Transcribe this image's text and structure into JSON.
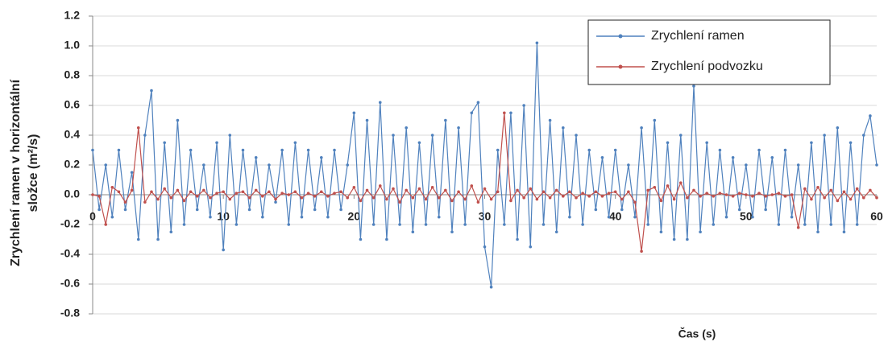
{
  "chart_data": {
    "type": "line",
    "ylabel": [
      "Zrychlení ramen v horizontální",
      "složce (m²/s)"
    ],
    "xlabel": "Čas (s)",
    "x": [
      0,
      0.5,
      1,
      1.5,
      2,
      2.5,
      3,
      3.5,
      4,
      4.5,
      5,
      5.5,
      6,
      6.5,
      7,
      7.5,
      8,
      8.5,
      9,
      9.5,
      10,
      10.5,
      11,
      11.5,
      12,
      12.5,
      13,
      13.5,
      14,
      14.5,
      15,
      15.5,
      16,
      16.5,
      17,
      17.5,
      18,
      18.5,
      19,
      19.5,
      20,
      20.5,
      21,
      21.5,
      22,
      22.5,
      23,
      23.5,
      24,
      24.5,
      25,
      25.5,
      26,
      26.5,
      27,
      27.5,
      28,
      28.5,
      29,
      29.5,
      30,
      30.5,
      31,
      31.5,
      32,
      32.5,
      33,
      33.5,
      34,
      34.5,
      35,
      35.5,
      36,
      36.5,
      37,
      37.5,
      38,
      38.5,
      39,
      39.5,
      40,
      40.5,
      41,
      41.5,
      42,
      42.5,
      43,
      43.5,
      44,
      44.5,
      45,
      45.5,
      46,
      46.5,
      47,
      47.5,
      48,
      48.5,
      49,
      49.5,
      50,
      50.5,
      51,
      51.5,
      52,
      52.5,
      53,
      53.5,
      54,
      54.5,
      55,
      55.5,
      56,
      56.5,
      57,
      57.5,
      58,
      58.5,
      59,
      59.5,
      60
    ],
    "series": [
      {
        "name": "Zrychlení ramen",
        "color": "#4f81bd",
        "values": [
          0.3,
          -0.1,
          0.2,
          -0.15,
          0.3,
          -0.1,
          0.15,
          -0.3,
          0.4,
          0.7,
          -0.3,
          0.35,
          -0.25,
          0.5,
          -0.2,
          0.3,
          -0.1,
          0.2,
          -0.15,
          0.35,
          -0.37,
          0.4,
          -0.2,
          0.3,
          -0.1,
          0.25,
          -0.15,
          0.2,
          -0.05,
          0.3,
          -0.2,
          0.35,
          -0.15,
          0.3,
          -0.1,
          0.25,
          -0.15,
          0.3,
          -0.1,
          0.2,
          0.55,
          -0.3,
          0.5,
          -0.2,
          0.62,
          -0.3,
          0.4,
          -0.2,
          0.45,
          -0.25,
          0.35,
          -0.2,
          0.4,
          -0.15,
          0.5,
          -0.25,
          0.45,
          -0.2,
          0.55,
          0.62,
          -0.35,
          -0.62,
          0.3,
          -0.2,
          0.55,
          -0.3,
          0.6,
          -0.35,
          1.02,
          -0.2,
          0.5,
          -0.25,
          0.45,
          -0.15,
          0.4,
          -0.2,
          0.3,
          -0.1,
          0.25,
          -0.15,
          0.3,
          -0.1,
          0.2,
          -0.15,
          0.45,
          -0.2,
          0.5,
          -0.25,
          0.35,
          -0.3,
          0.4,
          -0.3,
          0.73,
          -0.25,
          0.35,
          -0.2,
          0.3,
          -0.15,
          0.25,
          -0.1,
          0.2,
          -0.15,
          0.3,
          -0.1,
          0.25,
          -0.2,
          0.3,
          -0.15,
          0.2,
          -0.2,
          0.35,
          -0.25,
          0.4,
          -0.2,
          0.45,
          -0.25,
          0.35,
          -0.2,
          0.4,
          0.53,
          0.2
        ]
      },
      {
        "name": "Zrychlení podvozku",
        "color": "#c0504d",
        "values": [
          0,
          -0.01,
          -0.2,
          0.05,
          0.02,
          -0.05,
          0.03,
          0.45,
          -0.05,
          0.02,
          -0.03,
          0.04,
          -0.02,
          0.03,
          -0.04,
          0.02,
          -0.01,
          0.03,
          -0.02,
          0.01,
          0.02,
          -0.03,
          0.01,
          0.02,
          -0.02,
          0.03,
          -0.01,
          0.02,
          -0.03,
          0.01,
          0,
          0.02,
          -0.02,
          0.01,
          -0.01,
          0.02,
          -0.01,
          0.01,
          0.02,
          -0.02,
          0.05,
          -0.04,
          0.03,
          -0.02,
          0.06,
          -0.03,
          0.04,
          -0.05,
          0.03,
          -0.02,
          0.04,
          -0.03,
          0.05,
          -0.02,
          0.03,
          -0.04,
          0.02,
          -0.03,
          0.06,
          -0.05,
          0.04,
          -0.03,
          0.02,
          0.55,
          -0.04,
          0.03,
          -0.02,
          0.04,
          -0.03,
          0.02,
          -0.02,
          0.03,
          -0.01,
          0.02,
          -0.02,
          0.01,
          -0.01,
          0.02,
          -0.01,
          0.01,
          0.02,
          -0.03,
          0.02,
          -0.05,
          -0.38,
          0.03,
          0.05,
          -0.04,
          0.06,
          -0.03,
          0.08,
          -0.02,
          0.03,
          -0.01,
          0.01,
          -0.01,
          0.01,
          0,
          -0.01,
          0.01,
          0,
          -0.01,
          0.01,
          -0.01,
          0,
          0.01,
          -0.01,
          0,
          -0.22,
          0.04,
          -0.03,
          0.05,
          -0.02,
          0.03,
          -0.04,
          0.02,
          -0.03,
          0.04,
          -0.02,
          0.03,
          -0.02
        ]
      }
    ],
    "xlim": [
      0,
      60
    ],
    "xticks": [
      0,
      10,
      20,
      30,
      40,
      50,
      60
    ],
    "ylim": [
      -0.8,
      1.2
    ],
    "yticks": [
      -0.8,
      -0.6,
      -0.4,
      -0.2,
      {
        "value": 0,
        "label": "0.0"
      },
      0.2,
      0.4,
      0.6,
      0.8,
      {
        "value": 1,
        "label": "1.0"
      },
      1.2
    ],
    "grid": true,
    "legend": "upper right"
  }
}
